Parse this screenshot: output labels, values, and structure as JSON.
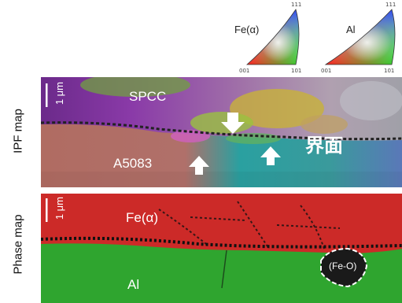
{
  "legend": {
    "tri1_label": "Fe(α)",
    "tri2_label": "Al",
    "tick_top": "111",
    "tick_left": "001",
    "tick_right": "101"
  },
  "ipf_map": {
    "side_label": "IPF map",
    "scale_label": "1 μm",
    "upper_material": "SPCC",
    "lower_material": "A5083",
    "interface_label": "界面"
  },
  "phase_map": {
    "side_label": "Phase map",
    "scale_label": "1 μm",
    "upper_phase": "Fe(α)",
    "lower_phase": "Al",
    "oxide_label": "(Fe-O)",
    "colors": {
      "fe": "#d42a2a",
      "al": "#2fa52f"
    }
  }
}
